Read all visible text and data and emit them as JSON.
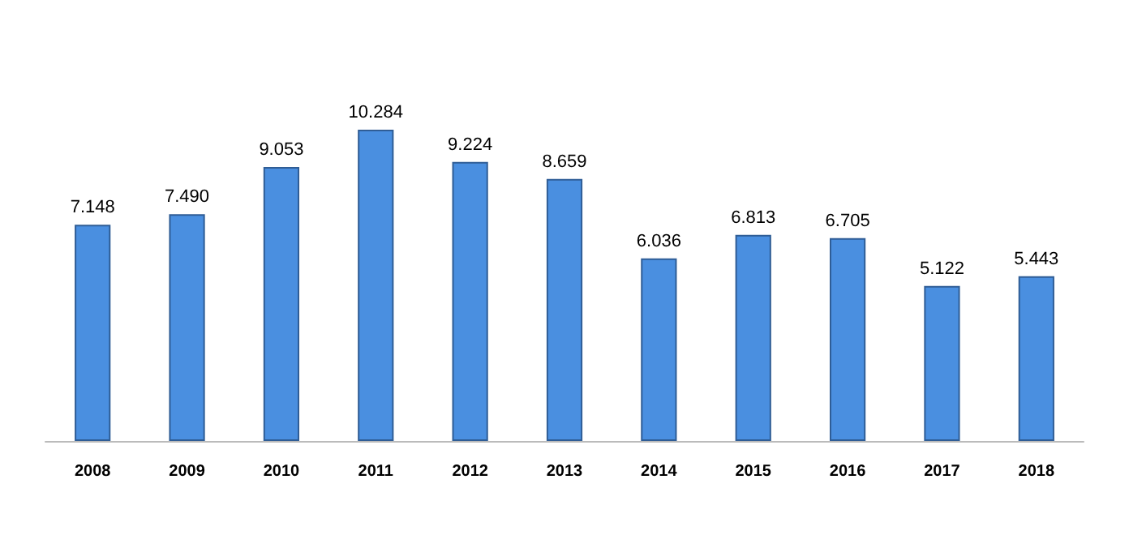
{
  "chart_data": {
    "type": "bar",
    "categories": [
      "2008",
      "2009",
      "2010",
      "2011",
      "2012",
      "2013",
      "2014",
      "2015",
      "2016",
      "2017",
      "2018"
    ],
    "values": [
      7148,
      7490,
      9053,
      10284,
      9224,
      8659,
      6036,
      6813,
      6705,
      5122,
      5443
    ],
    "value_labels": [
      "7.148",
      "7.490",
      "9.053",
      "10.284",
      "9.224",
      "8.659",
      "6.036",
      "6.813",
      "6.705",
      "5.122",
      "5.443"
    ],
    "color": "#4a8fe0"
  }
}
